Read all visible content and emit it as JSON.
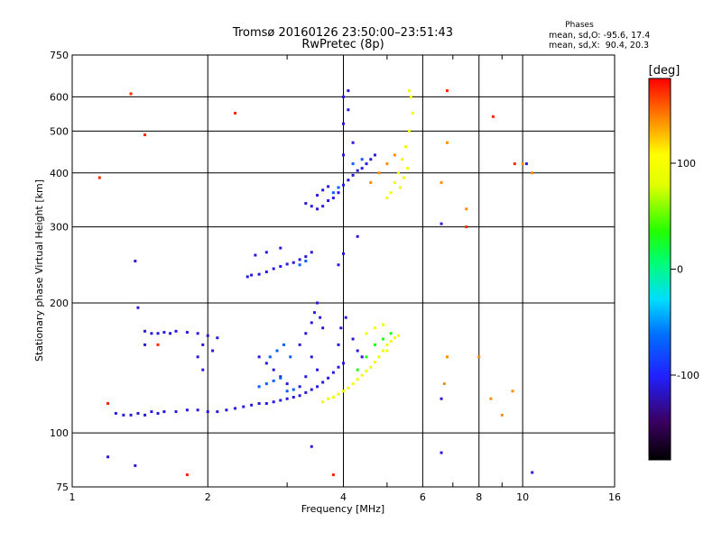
{
  "chart_data": {
    "type": "scatter",
    "title": "Tromsø 20160126 23:50:00–23:51:43",
    "subtitle": "RwPretec (8p)",
    "xlabel": "Frequency [MHz]",
    "ylabel": "Stationary phase Virtual Height [km]",
    "x_scale": "log",
    "y_scale": "log",
    "xlim": [
      1,
      16
    ],
    "ylim": [
      75,
      750
    ],
    "x_ticks": [
      1,
      2,
      4,
      6,
      8,
      10,
      16
    ],
    "x_tick_labels": [
      "1",
      "2",
      "4",
      "6",
      "8",
      "10",
      "16"
    ],
    "x_minor_ticks": [
      3,
      5,
      7,
      9
    ],
    "y_ticks": [
      75,
      100,
      200,
      300,
      400,
      500,
      600,
      750
    ],
    "y_tick_labels": [
      "75",
      "100",
      "200",
      "300",
      "400",
      "500",
      "600",
      "750"
    ],
    "grid": true,
    "colorbar": {
      "label": "[deg]",
      "range": [
        -180,
        180
      ],
      "ticks": [
        100,
        0,
        -100
      ],
      "tick_labels": [
        "100",
        "0",
        "-100"
      ]
    },
    "stats": {
      "title": "Phases",
      "o_line": "mean, sd,O: -95.6, 17.4",
      "x_line": "mean, sd,X:  90.4, 20.3"
    },
    "series": [
      {
        "phase_deg": -110,
        "points": [
          [
            1.25,
            111
          ],
          [
            1.3,
            110
          ],
          [
            1.35,
            110
          ],
          [
            1.4,
            111
          ],
          [
            1.45,
            110
          ],
          [
            1.5,
            112
          ],
          [
            1.55,
            111
          ],
          [
            1.6,
            112
          ],
          [
            1.7,
            112
          ],
          [
            1.8,
            113
          ],
          [
            1.9,
            113
          ],
          [
            2.0,
            112
          ],
          [
            2.1,
            112
          ],
          [
            2.2,
            113
          ],
          [
            2.3,
            114
          ],
          [
            2.4,
            115
          ],
          [
            2.5,
            116
          ],
          [
            2.6,
            117
          ],
          [
            2.7,
            117
          ],
          [
            2.8,
            118
          ],
          [
            2.9,
            119
          ],
          [
            3.0,
            120
          ],
          [
            3.1,
            121
          ],
          [
            3.2,
            122
          ],
          [
            3.3,
            124
          ],
          [
            3.4,
            126
          ],
          [
            3.5,
            128
          ],
          [
            3.6,
            131
          ],
          [
            3.7,
            134
          ],
          [
            3.8,
            138
          ],
          [
            3.9,
            142
          ],
          [
            4.0,
            145
          ],
          [
            1.45,
            172
          ],
          [
            1.5,
            170
          ],
          [
            1.55,
            170
          ],
          [
            1.6,
            171
          ],
          [
            1.65,
            170
          ],
          [
            1.7,
            172
          ],
          [
            1.8,
            171
          ],
          [
            1.9,
            170
          ],
          [
            2.0,
            168
          ],
          [
            2.1,
            166
          ],
          [
            1.95,
            160
          ],
          [
            2.05,
            155
          ],
          [
            1.9,
            150
          ],
          [
            1.95,
            140
          ],
          [
            2.45,
            230
          ],
          [
            2.5,
            232
          ],
          [
            2.6,
            233
          ],
          [
            2.7,
            236
          ],
          [
            2.8,
            240
          ],
          [
            2.9,
            243
          ],
          [
            3.0,
            246
          ],
          [
            3.1,
            248
          ],
          [
            3.2,
            252
          ],
          [
            3.3,
            256
          ],
          [
            3.4,
            262
          ],
          [
            2.55,
            258
          ],
          [
            2.7,
            262
          ],
          [
            2.9,
            268
          ],
          [
            3.3,
            340
          ],
          [
            3.4,
            335
          ],
          [
            3.5,
            330
          ],
          [
            3.6,
            335
          ],
          [
            3.7,
            345
          ],
          [
            3.8,
            350
          ],
          [
            3.9,
            360
          ],
          [
            4.0,
            375
          ],
          [
            4.1,
            385
          ],
          [
            4.2,
            395
          ],
          [
            4.3,
            405
          ],
          [
            4.4,
            410
          ],
          [
            4.5,
            420
          ],
          [
            4.6,
            430
          ],
          [
            4.7,
            440
          ],
          [
            3.5,
            355
          ],
          [
            3.6,
            365
          ],
          [
            3.7,
            372
          ],
          [
            4.0,
            440
          ],
          [
            4.2,
            470
          ],
          [
            4.0,
            520
          ],
          [
            4.1,
            560
          ],
          [
            4.0,
            600
          ],
          [
            4.1,
            620
          ],
          [
            3.2,
            160
          ],
          [
            3.3,
            170
          ],
          [
            3.4,
            180
          ],
          [
            3.45,
            190
          ],
          [
            3.5,
            200
          ],
          [
            3.55,
            185
          ],
          [
            3.6,
            175
          ],
          [
            3.4,
            150
          ],
          [
            3.5,
            140
          ],
          [
            3.3,
            135
          ],
          [
            3.2,
            128
          ],
          [
            3.0,
            130
          ],
          [
            2.9,
            135
          ],
          [
            2.8,
            140
          ],
          [
            2.7,
            145
          ],
          [
            2.6,
            150
          ],
          [
            3.9,
            160
          ],
          [
            3.95,
            175
          ],
          [
            4.05,
            185
          ],
          [
            4.2,
            165
          ],
          [
            4.3,
            155
          ],
          [
            4.4,
            150
          ]
        ]
      },
      {
        "phase_deg": -70,
        "points": [
          [
            2.6,
            128
          ],
          [
            2.7,
            130
          ],
          [
            2.8,
            132
          ],
          [
            2.9,
            134
          ],
          [
            3.0,
            125
          ],
          [
            3.1,
            126
          ],
          [
            2.75,
            150
          ],
          [
            2.85,
            155
          ],
          [
            2.95,
            160
          ],
          [
            3.05,
            150
          ],
          [
            3.2,
            245
          ],
          [
            3.3,
            250
          ],
          [
            3.8,
            360
          ],
          [
            3.9,
            370
          ],
          [
            4.2,
            420
          ],
          [
            4.4,
            430
          ]
        ]
      },
      {
        "phase_deg": 30,
        "points": [
          [
            4.3,
            140
          ],
          [
            4.5,
            150
          ],
          [
            4.7,
            160
          ],
          [
            4.9,
            165
          ],
          [
            5.1,
            170
          ]
        ]
      },
      {
        "phase_deg": 95,
        "points": [
          [
            3.6,
            118
          ],
          [
            3.7,
            120
          ],
          [
            3.8,
            121
          ],
          [
            3.9,
            123
          ],
          [
            4.0,
            125
          ],
          [
            4.1,
            127
          ],
          [
            4.2,
            130
          ],
          [
            4.3,
            133
          ],
          [
            4.4,
            136
          ],
          [
            4.5,
            139
          ],
          [
            4.6,
            142
          ],
          [
            4.7,
            146
          ],
          [
            4.8,
            150
          ],
          [
            4.9,
            155
          ],
          [
            5.0,
            160
          ],
          [
            5.1,
            163
          ],
          [
            5.2,
            166
          ],
          [
            5.3,
            168
          ],
          [
            4.5,
            170
          ],
          [
            4.7,
            175
          ],
          [
            4.9,
            178
          ],
          [
            5.0,
            155
          ],
          [
            5.1,
            360
          ],
          [
            5.2,
            380
          ],
          [
            5.3,
            400
          ],
          [
            5.4,
            430
          ],
          [
            5.5,
            460
          ],
          [
            5.6,
            500
          ],
          [
            5.7,
            550
          ],
          [
            5.65,
            600
          ],
          [
            5.6,
            620
          ],
          [
            5.55,
            410
          ],
          [
            5.45,
            390
          ],
          [
            5.35,
            370
          ],
          [
            5.0,
            350
          ]
        ]
      },
      {
        "phase_deg": 140,
        "points": [
          [
            4.6,
            380
          ],
          [
            4.8,
            400
          ],
          [
            5.0,
            420
          ],
          [
            5.2,
            440
          ],
          [
            6.6,
            380
          ],
          [
            6.8,
            470
          ],
          [
            7.5,
            330
          ],
          [
            8.0,
            150
          ],
          [
            8.5,
            120
          ],
          [
            9.0,
            110
          ],
          [
            9.5,
            125
          ],
          [
            10.0,
            420
          ],
          [
            10.5,
            400
          ],
          [
            6.7,
            130
          ],
          [
            6.8,
            150
          ]
        ]
      },
      {
        "phase_deg": 170,
        "points": [
          [
            1.15,
            390
          ],
          [
            1.35,
            610
          ],
          [
            1.45,
            490
          ],
          [
            2.3,
            550
          ],
          [
            6.8,
            620
          ],
          [
            7.5,
            300
          ],
          [
            8.6,
            540
          ],
          [
            9.6,
            420
          ],
          [
            1.8,
            80
          ],
          [
            3.8,
            80
          ],
          [
            1.2,
            117
          ],
          [
            1.55,
            160
          ]
        ]
      },
      {
        "phase_deg": -110,
        "points": [
          [
            1.38,
            250
          ],
          [
            1.4,
            195
          ],
          [
            1.45,
            160
          ],
          [
            1.2,
            88
          ],
          [
            1.38,
            84
          ],
          [
            3.4,
            93
          ],
          [
            6.6,
            90
          ],
          [
            6.6,
            305
          ],
          [
            10.5,
            81
          ],
          [
            10.2,
            420
          ],
          [
            6.6,
            120
          ],
          [
            3.9,
            245
          ],
          [
            4.0,
            260
          ],
          [
            4.3,
            285
          ]
        ]
      }
    ]
  }
}
